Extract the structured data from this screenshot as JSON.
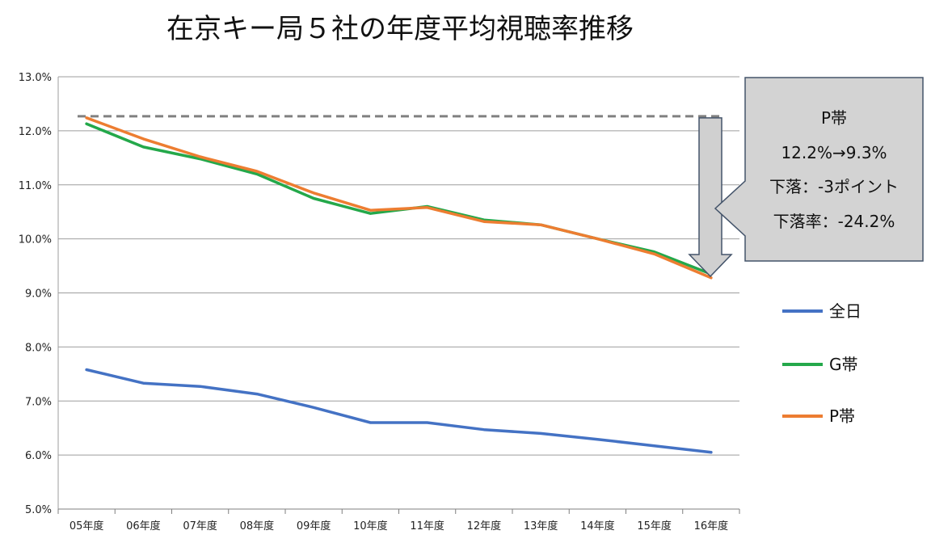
{
  "chart_data": {
    "type": "line",
    "title": "在京キー局５社の年度平均視聴率推移",
    "categories": [
      "05年度",
      "06年度",
      "07年度",
      "08年度",
      "09年度",
      "10年度",
      "11年度",
      "12年度",
      "13年度",
      "14年度",
      "15年度",
      "16年度"
    ],
    "y_ticks": [
      "5.0%",
      "6.0%",
      "7.0%",
      "8.0%",
      "9.0%",
      "10.0%",
      "11.0%",
      "12.0%",
      "13.0%"
    ],
    "ylim": [
      5.0,
      13.0
    ],
    "grid": true,
    "legend_position": "right",
    "series": [
      {
        "name": "全日",
        "color": "#4472c4",
        "values": [
          7.58,
          7.33,
          7.27,
          7.13,
          6.88,
          6.6,
          6.6,
          6.47,
          6.4,
          6.29,
          6.17,
          6.05
        ]
      },
      {
        "name": "G帯",
        "color": "#24a84a",
        "values": [
          12.13,
          11.7,
          11.48,
          11.2,
          10.75,
          10.47,
          10.6,
          10.35,
          10.26,
          10.0,
          9.76,
          9.35
        ]
      },
      {
        "name": "P帯",
        "color": "#ed7d31",
        "values": [
          12.24,
          11.85,
          11.52,
          11.25,
          10.85,
          10.53,
          10.58,
          10.32,
          10.26,
          10.0,
          9.72,
          9.28
        ]
      }
    ],
    "reference_line": {
      "value": 12.27,
      "color": "#808080"
    },
    "callout": {
      "lines": [
        "P帯",
        "12.2%→9.3%",
        "下落：-3ポイント",
        "下落率：-24.2%"
      ],
      "fill": "#d3d3d3",
      "border": "#44546a"
    }
  }
}
